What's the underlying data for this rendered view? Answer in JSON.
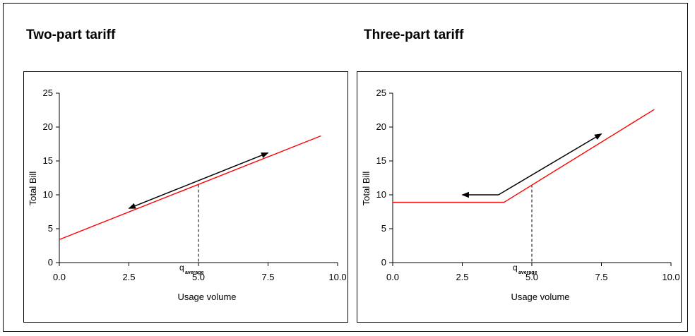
{
  "chart_data": [
    {
      "type": "line",
      "title": "Two-part tariff",
      "xlabel": "Usage volume",
      "ylabel": "Total Bill",
      "xlim": [
        0,
        10
      ],
      "ylim": [
        0,
        25
      ],
      "x_ticks": [
        "0.0",
        "2.5",
        "5.0",
        "7.5",
        "10.0"
      ],
      "y_ticks": [
        "0",
        "5",
        "10",
        "15",
        "20",
        "25"
      ],
      "series": [
        {
          "color": "#ff0000",
          "x": [
            0,
            9.4
          ],
          "y": [
            3.4,
            18.7
          ]
        }
      ],
      "annotations": {
        "q_label": "q",
        "q_subscript": "average",
        "q_x": 5.0,
        "q_y": 11.5,
        "arrow": {
          "from": [
            2.5,
            8.0
          ],
          "to": [
            7.5,
            16.2
          ],
          "double_headed": true
        },
        "arrow_color": "#000000"
      },
      "grid": false
    },
    {
      "type": "line",
      "title": "Three-part tariff",
      "xlabel": "Usage volume",
      "ylabel": "Total Bill",
      "xlim": [
        0,
        10
      ],
      "ylim": [
        0,
        25
      ],
      "x_ticks": [
        "0.0",
        "2.5",
        "5.0",
        "7.5",
        "10.0"
      ],
      "y_ticks": [
        "0",
        "5",
        "10",
        "15",
        "20",
        "25"
      ],
      "series": [
        {
          "color": "#ff0000",
          "x": [
            0,
            4,
            9.4
          ],
          "y": [
            8.9,
            8.9,
            22.6
          ]
        }
      ],
      "annotations": {
        "q_label": "q",
        "q_subscript": "average",
        "q_x": 5.0,
        "q_y": 11.5,
        "arrow_segments": [
          [
            3.8,
            10.0
          ],
          [
            2.5,
            10.0
          ]
        ],
        "arrow_segments_2": [
          [
            3.8,
            10.0
          ],
          [
            7.5,
            19.0
          ]
        ],
        "arrow_color": "#000000"
      },
      "grid": false
    }
  ]
}
